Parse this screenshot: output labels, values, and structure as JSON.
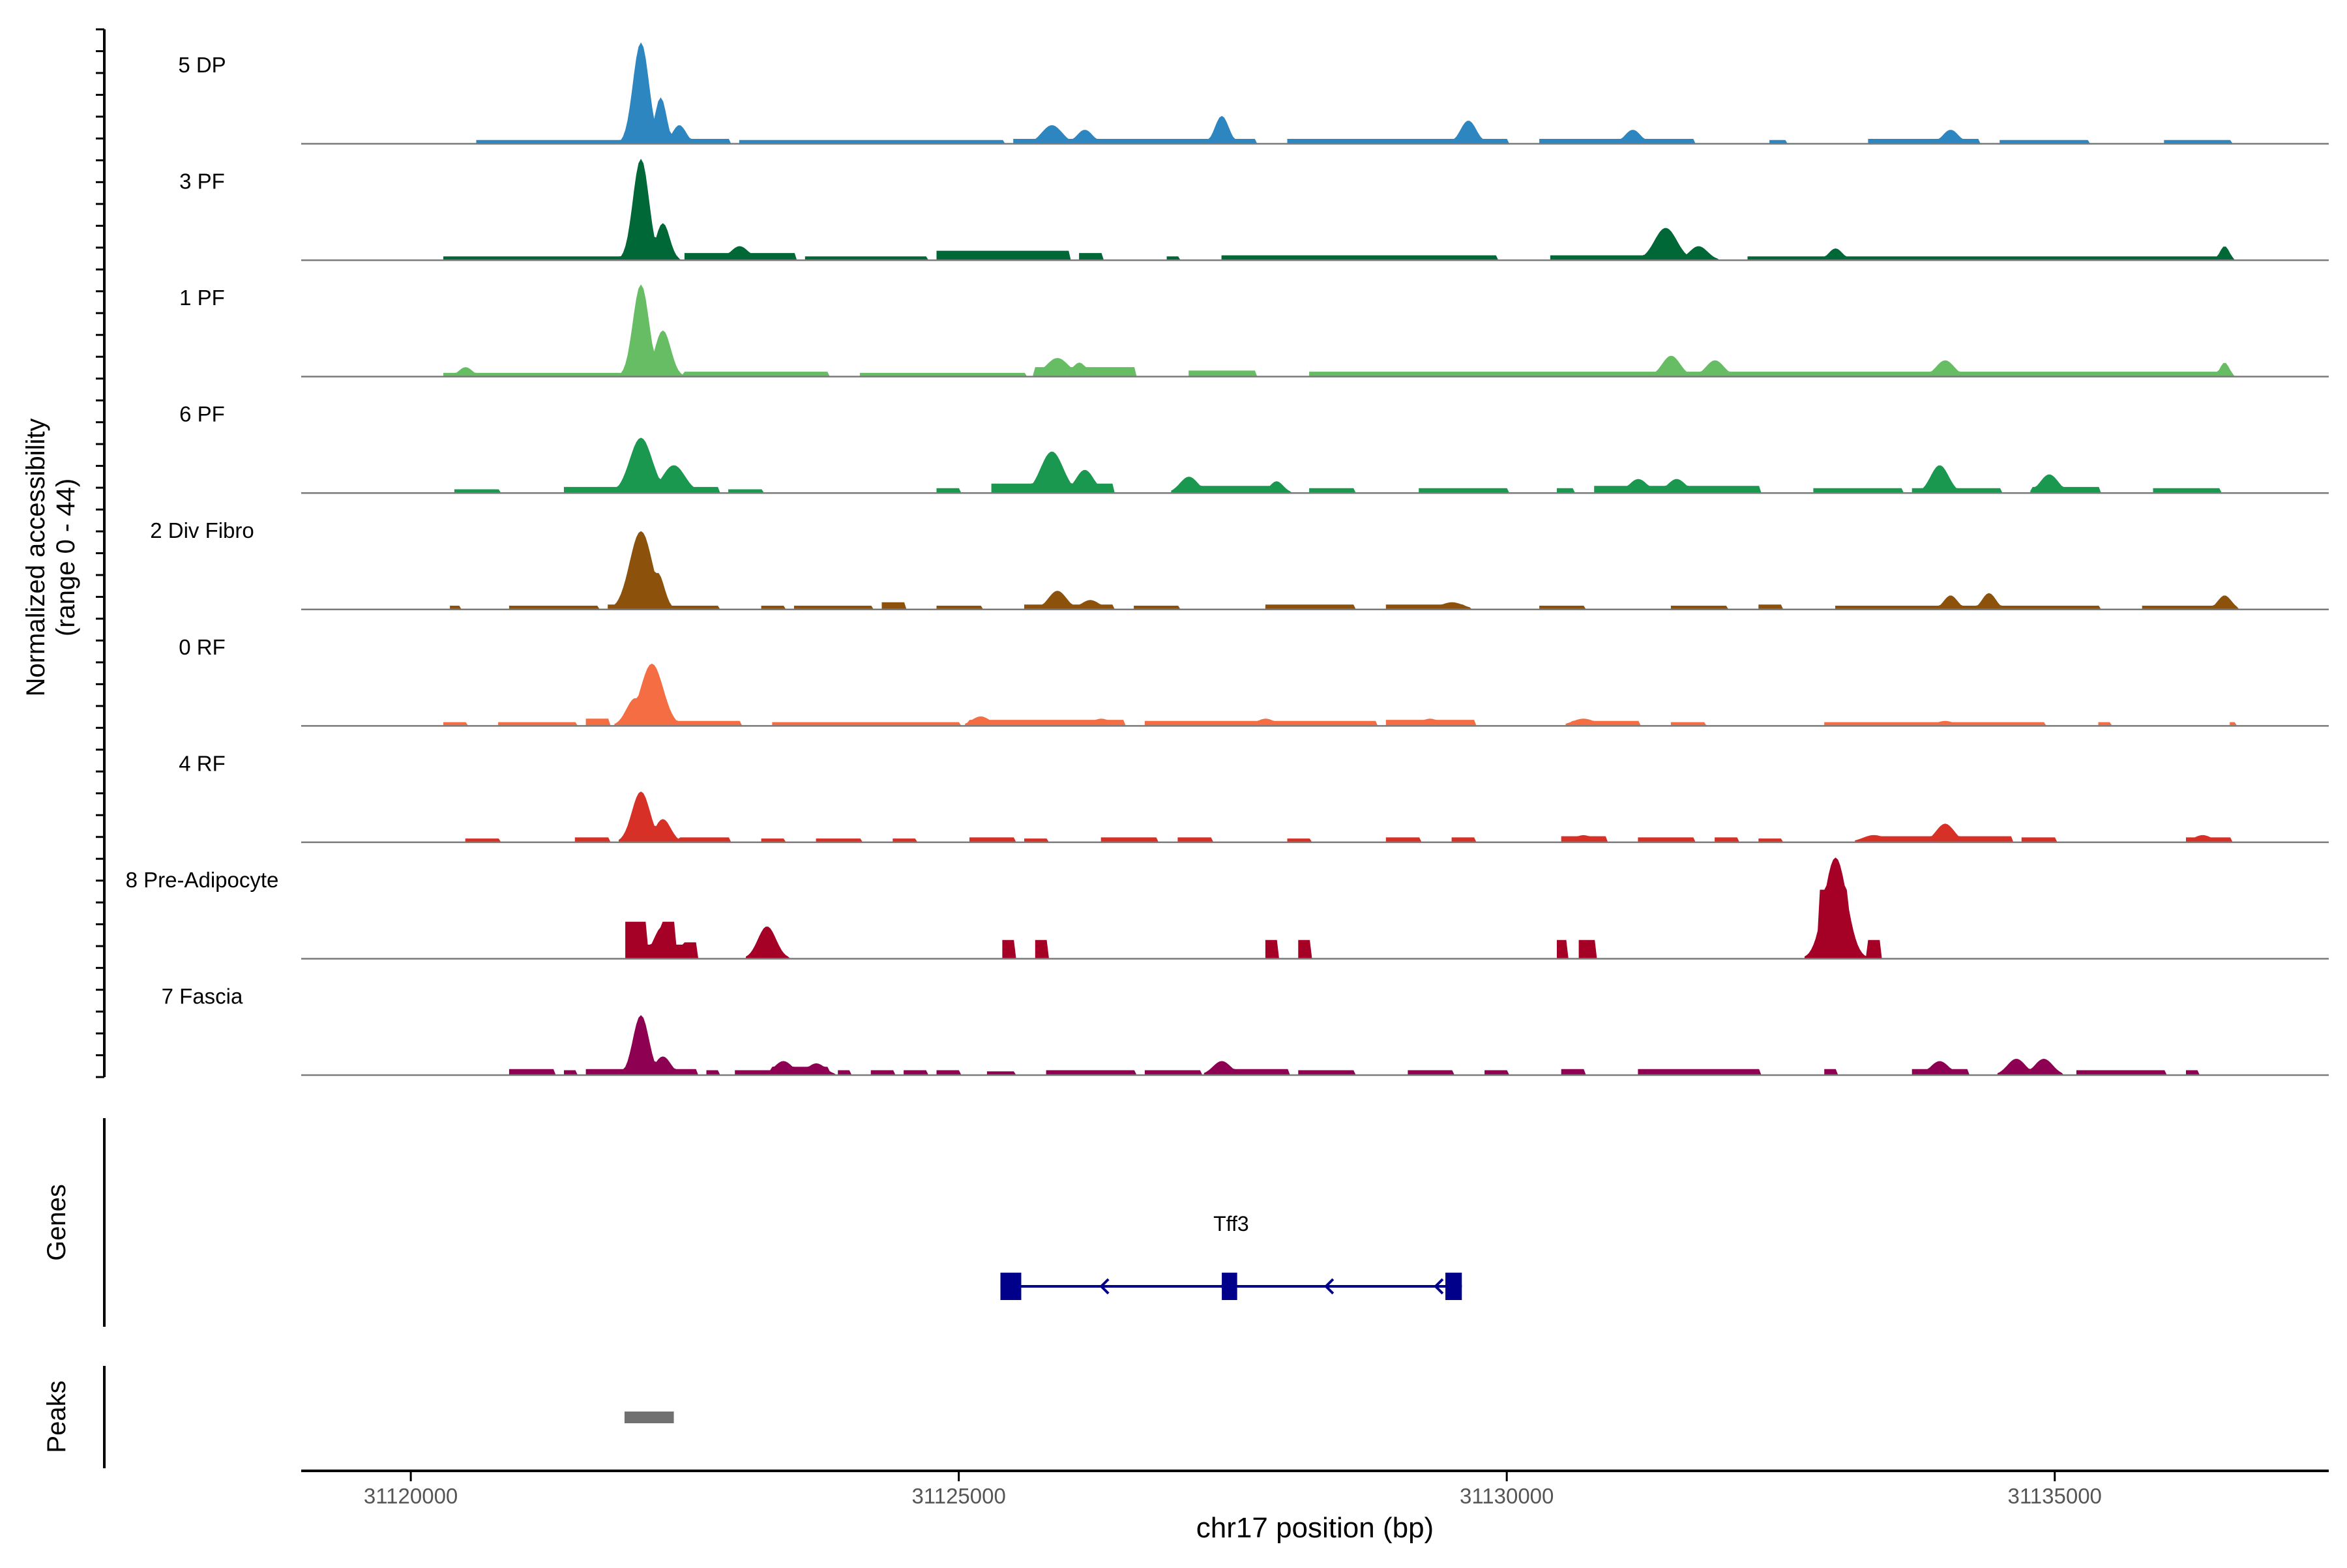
{
  "chart_data": {
    "type": "area",
    "ylabel_line1": "Normalized accessibility",
    "ylabel_line2": "(range 0 - 44)",
    "xlabel": "chr17 position (bp)",
    "xlim": [
      31119000,
      31137500
    ],
    "ylim": [
      0,
      44
    ],
    "x_ticks": [
      31120000,
      31125000,
      31130000,
      31135000
    ],
    "x_tick_labels": [
      "31120000",
      "31125000",
      "31130000",
      "31135000"
    ],
    "series": [
      {
        "name": "5 DP",
        "color": "#2E86C1",
        "peaks": [
          [
            31122100,
            44,
            70
          ],
          [
            31122280,
            20,
            50
          ],
          [
            31122450,
            8,
            60
          ],
          [
            31125850,
            8,
            90
          ],
          [
            31126150,
            6,
            70
          ],
          [
            31127400,
            12,
            60
          ],
          [
            31129650,
            10,
            70
          ],
          [
            31131150,
            6,
            70
          ],
          [
            31134050,
            6,
            70
          ]
        ],
        "segments": [
          [
            31120600,
            31121900,
            1.5
          ],
          [
            31122550,
            31122900,
            2
          ],
          [
            31123000,
            31125400,
            1.5
          ],
          [
            31125500,
            31127700,
            2
          ],
          [
            31128000,
            31130000,
            2
          ],
          [
            31130300,
            31131700,
            2
          ],
          [
            31132400,
            31132550,
            1.5
          ],
          [
            31133300,
            31134300,
            2
          ],
          [
            31134500,
            31135300,
            1.5
          ],
          [
            31136000,
            31136600,
            1.5
          ]
        ]
      },
      {
        "name": "3 PF",
        "color": "#006837",
        "peaks": [
          [
            31122100,
            44,
            70
          ],
          [
            31122300,
            16,
            60
          ],
          [
            31123000,
            6,
            80
          ],
          [
            31131450,
            14,
            100
          ],
          [
            31131750,
            6,
            80
          ],
          [
            31133000,
            5,
            60
          ],
          [
            31136550,
            6,
            40
          ]
        ],
        "segments": [
          [
            31120300,
            31121900,
            1.5
          ],
          [
            31122500,
            31123500,
            3
          ],
          [
            31123600,
            31124700,
            1.5
          ],
          [
            31124800,
            31126000,
            4
          ],
          [
            31126100,
            31126300,
            3
          ],
          [
            31126900,
            31127000,
            1.5
          ],
          [
            31127400,
            31129900,
            2
          ],
          [
            31130400,
            31131800,
            2
          ],
          [
            31132200,
            31136600,
            1.5
          ]
        ]
      },
      {
        "name": "1 PF",
        "color": "#66BD63",
        "peaks": [
          [
            31122100,
            40,
            70
          ],
          [
            31122300,
            20,
            70
          ],
          [
            31120500,
            4,
            60
          ],
          [
            31125900,
            8,
            100
          ],
          [
            31126100,
            6,
            60
          ],
          [
            31131500,
            9,
            80
          ],
          [
            31131900,
            7,
            80
          ],
          [
            31134000,
            7,
            80
          ],
          [
            31136550,
            6,
            40
          ]
        ],
        "segments": [
          [
            31120300,
            31121900,
            1.5
          ],
          [
            31122500,
            31123800,
            2
          ],
          [
            31124100,
            31125600,
            1.5
          ],
          [
            31125700,
            31126600,
            4
          ],
          [
            31127100,
            31127700,
            2.5
          ],
          [
            31128200,
            31136600,
            2
          ]
        ]
      },
      {
        "name": "6 PF",
        "color": "#1A9850",
        "peaks": [
          [
            31122100,
            24,
            100
          ],
          [
            31122400,
            12,
            100
          ],
          [
            31125850,
            18,
            100
          ],
          [
            31126150,
            10,
            80
          ],
          [
            31127100,
            7,
            80
          ],
          [
            31127900,
            5,
            60
          ],
          [
            31131200,
            6,
            80
          ],
          [
            31131550,
            6,
            80
          ],
          [
            31133950,
            12,
            80
          ],
          [
            31134950,
            8,
            80
          ]
        ],
        "segments": [
          [
            31120400,
            31120800,
            1.5
          ],
          [
            31121400,
            31121900,
            2.5
          ],
          [
            31122500,
            31122800,
            2.5
          ],
          [
            31122900,
            31123200,
            1.5
          ],
          [
            31124800,
            31125000,
            2
          ],
          [
            31125300,
            31126400,
            4
          ],
          [
            31127000,
            31127900,
            3
          ],
          [
            31128200,
            31128600,
            2
          ],
          [
            31129200,
            31130000,
            2
          ],
          [
            31130450,
            31130600,
            2
          ],
          [
            31130800,
            31132300,
            3
          ],
          [
            31132800,
            31133600,
            2
          ],
          [
            31133700,
            31134500,
            2
          ],
          [
            31134800,
            31135400,
            2.5
          ],
          [
            31135900,
            31136500,
            2
          ]
        ]
      },
      {
        "name": "2 Div Fibro",
        "color": "#8C510A",
        "peaks": [
          [
            31122100,
            34,
            100
          ],
          [
            31122250,
            16,
            60
          ],
          [
            31125900,
            8,
            80
          ],
          [
            31126200,
            4,
            80
          ],
          [
            31129500,
            3,
            100
          ],
          [
            31134050,
            6,
            60
          ],
          [
            31134400,
            7,
            60
          ],
          [
            31136550,
            6,
            60
          ]
        ],
        "segments": [
          [
            31120350,
            31120450,
            1.5
          ],
          [
            31120900,
            31121700,
            1.5
          ],
          [
            31121800,
            31122000,
            2
          ],
          [
            31122400,
            31122800,
            1.5
          ],
          [
            31123200,
            31123400,
            1.5
          ],
          [
            31123500,
            31124200,
            1.5
          ],
          [
            31124300,
            31124500,
            3
          ],
          [
            31124800,
            31125200,
            1.5
          ],
          [
            31125600,
            31126400,
            2
          ],
          [
            31126600,
            31127000,
            1.5
          ],
          [
            31127800,
            31128600,
            2
          ],
          [
            31128900,
            31129600,
            2
          ],
          [
            31130300,
            31130700,
            1.5
          ],
          [
            31131500,
            31132000,
            1.5
          ],
          [
            31132300,
            31132500,
            2
          ],
          [
            31133000,
            31135400,
            1.5
          ],
          [
            31135800,
            31136600,
            1.5
          ]
        ]
      },
      {
        "name": "0 RF",
        "color": "#F46D43",
        "peaks": [
          [
            31122200,
            27,
            100
          ],
          [
            31122050,
            12,
            80
          ],
          [
            31125200,
            4,
            80
          ],
          [
            31126300,
            3,
            80
          ],
          [
            31127800,
            3,
            80
          ],
          [
            31129300,
            3,
            80
          ],
          [
            31130700,
            3,
            100
          ],
          [
            31134000,
            2,
            80
          ]
        ],
        "segments": [
          [
            31120300,
            31120500,
            1.5
          ],
          [
            31120800,
            31121500,
            1.5
          ],
          [
            31121600,
            31121800,
            3
          ],
          [
            31122400,
            31123000,
            2
          ],
          [
            31123300,
            31125000,
            1.5
          ],
          [
            31125100,
            31126500,
            2.5
          ],
          [
            31126700,
            31128800,
            2
          ],
          [
            31128900,
            31129700,
            2.5
          ],
          [
            31130600,
            31131200,
            2
          ],
          [
            31131500,
            31131800,
            1.5
          ],
          [
            31132900,
            31134900,
            1.5
          ],
          [
            31135400,
            31135500,
            1.5
          ],
          [
            31136600,
            31136650,
            1.5
          ]
        ]
      },
      {
        "name": "4 RF",
        "color": "#D73027",
        "peaks": [
          [
            31122100,
            22,
            80
          ],
          [
            31122300,
            10,
            70
          ],
          [
            31133350,
            3,
            100
          ],
          [
            31134000,
            8,
            80
          ],
          [
            31130700,
            3,
            80
          ],
          [
            31136350,
            3,
            80
          ]
        ],
        "segments": [
          [
            31120500,
            31120800,
            1.5
          ],
          [
            31121500,
            31121800,
            2
          ],
          [
            31122450,
            31122900,
            2
          ],
          [
            31123200,
            31123400,
            1.5
          ],
          [
            31123700,
            31124100,
            1.5
          ],
          [
            31124400,
            31124600,
            1.5
          ],
          [
            31125100,
            31125500,
            2
          ],
          [
            31125600,
            31125800,
            1.5
          ],
          [
            31126300,
            31126800,
            2
          ],
          [
            31127000,
            31127300,
            2
          ],
          [
            31128000,
            31128200,
            1.5
          ],
          [
            31128900,
            31129200,
            2
          ],
          [
            31129500,
            31129700,
            2
          ],
          [
            31130500,
            31130900,
            2.5
          ],
          [
            31131200,
            31131700,
            2
          ],
          [
            31131900,
            31132100,
            2
          ],
          [
            31132300,
            31132500,
            1.5
          ],
          [
            31133400,
            31134600,
            2.5
          ],
          [
            31134700,
            31135000,
            2
          ],
          [
            31136200,
            31136600,
            2
          ]
        ]
      },
      {
        "name": "8 Pre-Adipocyte",
        "color": "#A50026",
        "peaks": [
          [
            31133000,
            44,
            100
          ],
          [
            31122300,
            14,
            80
          ],
          [
            31123250,
            14,
            80
          ]
        ],
        "segments": [
          [
            31121950,
            31122150,
            16
          ],
          [
            31122150,
            31122300,
            6
          ],
          [
            31122300,
            31122400,
            16
          ],
          [
            31122400,
            31122500,
            6
          ],
          [
            31122500,
            31122600,
            7
          ],
          [
            31123150,
            31123350,
            6
          ],
          [
            31125400,
            31125500,
            8
          ],
          [
            31125700,
            31125800,
            8
          ],
          [
            31127800,
            31127900,
            8
          ],
          [
            31128100,
            31128200,
            8
          ],
          [
            31130450,
            31130550,
            8
          ],
          [
            31130650,
            31130800,
            8
          ],
          [
            31132850,
            31133100,
            30
          ],
          [
            31133300,
            31133400,
            8
          ]
        ]
      },
      {
        "name": "7 Fascia",
        "color": "#8E0152",
        "peaks": [
          [
            31122100,
            26,
            70
          ],
          [
            31122300,
            8,
            70
          ],
          [
            31123400,
            6,
            80
          ],
          [
            31123700,
            5,
            80
          ],
          [
            31127400,
            6,
            80
          ],
          [
            31133950,
            6,
            80
          ],
          [
            31134650,
            7,
            80
          ],
          [
            31134900,
            7,
            80
          ]
        ],
        "segments": [
          [
            31120900,
            31121300,
            2.5
          ],
          [
            31121400,
            31121500,
            2
          ],
          [
            31121600,
            31122600,
            2.5
          ],
          [
            31122700,
            31122800,
            2
          ],
          [
            31122950,
            31123300,
            2
          ],
          [
            31123300,
            31123800,
            3.5
          ],
          [
            31123900,
            31124000,
            2
          ],
          [
            31124200,
            31124400,
            2
          ],
          [
            31124500,
            31124700,
            2
          ],
          [
            31124800,
            31125000,
            2
          ],
          [
            31125250,
            31125500,
            1.5
          ],
          [
            31125800,
            31126600,
            2
          ],
          [
            31126700,
            31127200,
            2
          ],
          [
            31127300,
            31128000,
            2.5
          ],
          [
            31128100,
            31128600,
            2
          ],
          [
            31129100,
            31129500,
            2
          ],
          [
            31129800,
            31130000,
            2
          ],
          [
            31130500,
            31130700,
            2.5
          ],
          [
            31131200,
            31132300,
            2.5
          ],
          [
            31132900,
            31133000,
            2.5
          ],
          [
            31133700,
            31134200,
            2.5
          ],
          [
            31134600,
            31135000,
            2.5
          ],
          [
            31135200,
            31136000,
            2
          ],
          [
            31136200,
            31136300,
            2
          ]
        ]
      }
    ],
    "gene_track_label": "Genes",
    "gene": {
      "name": "Tff3",
      "start": 31125380,
      "end": 31129590,
      "strand": "-",
      "exons": [
        [
          31125380,
          31125570
        ],
        [
          31127400,
          31127540
        ],
        [
          31129440,
          31129590
        ]
      ],
      "arrows": [
        31126300,
        31127400,
        31128350,
        31129350
      ],
      "color": "#00008B"
    },
    "peak_track_label": "Peaks",
    "called_peaks": [
      [
        31121950,
        31122400
      ]
    ],
    "peak_color": "#707070"
  }
}
